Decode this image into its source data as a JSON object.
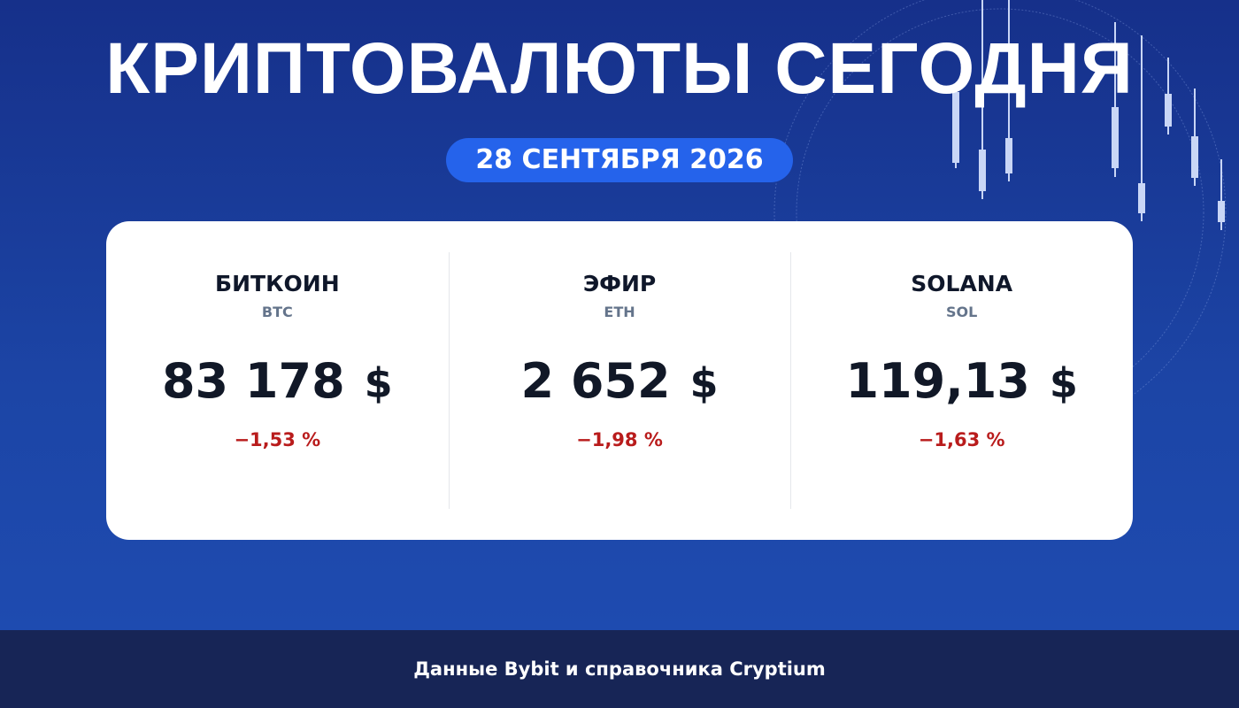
{
  "header": {
    "title": "КРИПТОВАЛЮТЫ СЕГОДНЯ",
    "date": "28 СЕНТЯБРЯ 2026"
  },
  "cards": [
    {
      "name": "БИТКОИН",
      "ticker": "BTC",
      "price": "83 178",
      "currency": "$",
      "change": "−1,53 %"
    },
    {
      "name": "ЭФИР",
      "ticker": "ETH",
      "price": "2 652",
      "currency": "$",
      "change": "−1,98 %"
    },
    {
      "name": "SOLANA",
      "ticker": "SOL",
      "price": "119,13",
      "currency": "$",
      "change": "−1,63 %"
    }
  ],
  "footer": {
    "source": "Данные Bybit и справочника Cryptium"
  }
}
